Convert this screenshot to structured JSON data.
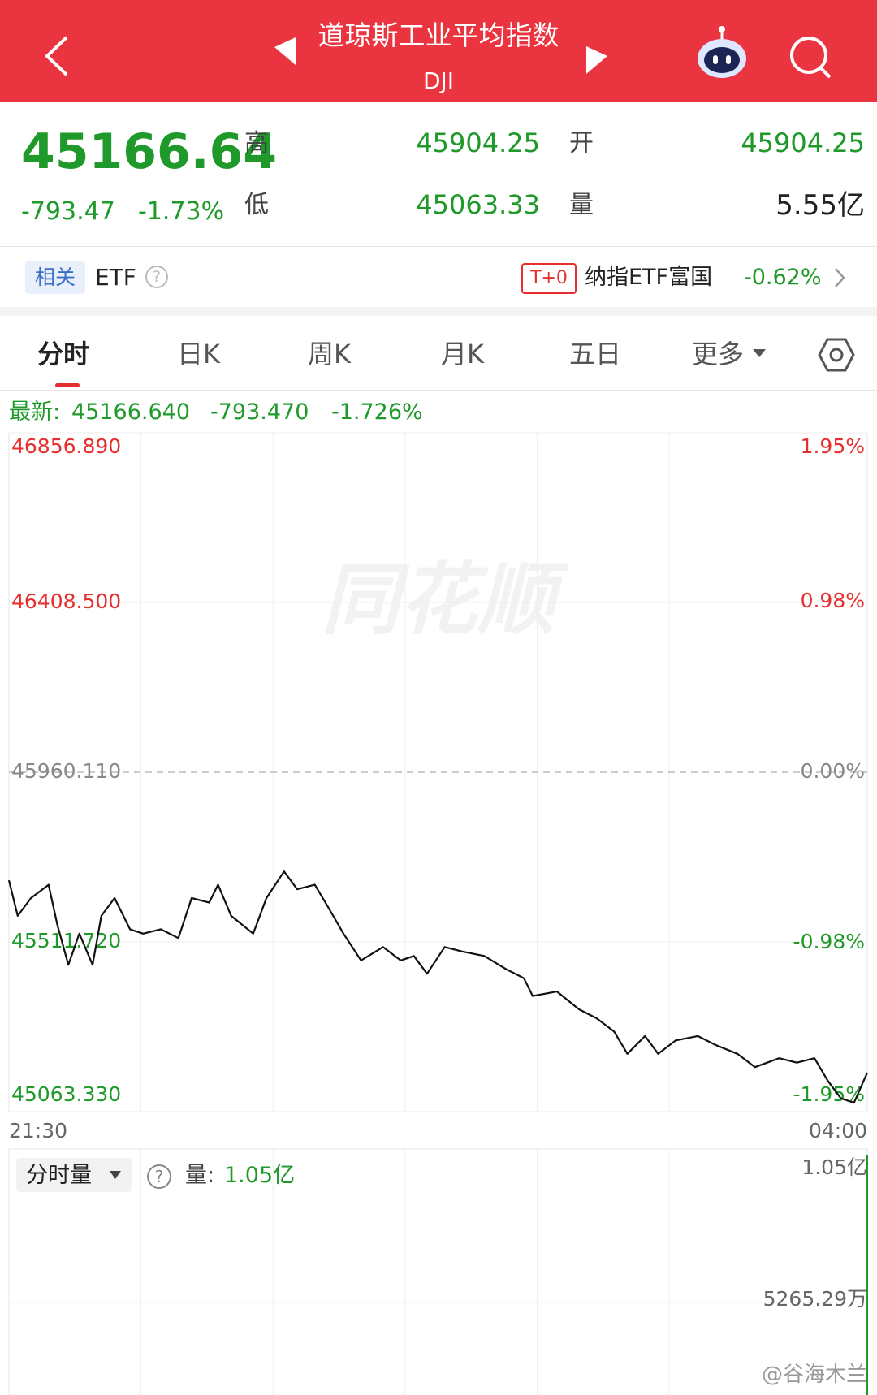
{
  "header": {
    "title": "道琼斯工业平均指数",
    "code": "DJI"
  },
  "quote": {
    "price": "45166.64",
    "change": "-793.47",
    "change_pct": "-1.73%",
    "high_label": "高",
    "high": "45904.25",
    "open_label": "开",
    "open": "45904.25",
    "low_label": "低",
    "low": "45063.33",
    "volume_label": "量",
    "volume": "5.55亿"
  },
  "etf": {
    "tag": "相关",
    "label": "ETF",
    "t0": "T+0",
    "name": "纳指ETF富国",
    "change": "-0.62%"
  },
  "tabs": [
    "分时",
    "日K",
    "周K",
    "月K",
    "五日",
    "更多"
  ],
  "latest": {
    "label": "最新:",
    "price": "45166.640",
    "change": "-793.470",
    "change_pct": "-1.726%"
  },
  "watermark": "同花顺",
  "chart_data": {
    "type": "line",
    "color": "#111111",
    "x": [
      0,
      4,
      10,
      18,
      22,
      27,
      32,
      38,
      42,
      48,
      55,
      61,
      69,
      77,
      83,
      91,
      95,
      101,
      111,
      117,
      125,
      131,
      139,
      145,
      152,
      160,
      170,
      178,
      184,
      190,
      198,
      206,
      216,
      226,
      234,
      238,
      249,
      259,
      267,
      275,
      281,
      289,
      295,
      303,
      313,
      321,
      331,
      339,
      350,
      358,
      366,
      372,
      378,
      384,
      390
    ],
    "values": [
      45674.5,
      45580.5,
      45627.5,
      45662.7,
      45557.0,
      45451.2,
      45533.5,
      45451.2,
      45580.5,
      45627.5,
      45545.2,
      45533.5,
      45545.2,
      45521.7,
      45627.5,
      45615.7,
      45662.7,
      45580.5,
      45533.5,
      45627.5,
      45698.0,
      45651.0,
      45662.7,
      45604.0,
      45533.5,
      45462.9,
      45498.2,
      45462.9,
      45474.7,
      45427.7,
      45498.2,
      45486.4,
      45474.7,
      45439.4,
      45415.9,
      45368.9,
      45380.7,
      45333.6,
      45310.1,
      45274.9,
      45216.1,
      45263.1,
      45216.1,
      45251.4,
      45263.1,
      45239.6,
      45216.1,
      45180.9,
      45204.4,
      45192.6,
      45204.4,
      45145.6,
      45098.6,
      45086.8,
      45166.6
    ],
    "xlim": [
      0,
      390
    ],
    "xticks": [
      {
        "value": 0,
        "label": "21:30"
      },
      {
        "value": 390,
        "label": "04:00"
      }
    ],
    "ylim": [
      45063.33,
      46856.89
    ],
    "yticks": [
      {
        "value": 46856.89,
        "label": "46856.890"
      },
      {
        "value": 46408.5,
        "label": "46408.500"
      },
      {
        "value": 45960.11,
        "label": "45960.110"
      },
      {
        "value": 45511.72,
        "label": "45511.720"
      },
      {
        "value": 45063.33,
        "label": "45063.330"
      }
    ],
    "y2lim": [
      -1.95,
      1.95
    ],
    "y2ticks": [
      {
        "value": 1.95,
        "label": "1.95%"
      },
      {
        "value": 0.98,
        "label": "0.98%"
      },
      {
        "value": 0,
        "label": "0.00%"
      },
      {
        "value": -0.98,
        "label": "-0.98%"
      },
      {
        "value": -1.95,
        "label": "-1.95%"
      }
    ],
    "grid": true
  },
  "volume_panel": {
    "selector": "分时量",
    "label": "量:",
    "value": "1.05亿",
    "max_label": "1.05亿",
    "mid_label": "5265.29万"
  },
  "credit": "@谷海木兰"
}
